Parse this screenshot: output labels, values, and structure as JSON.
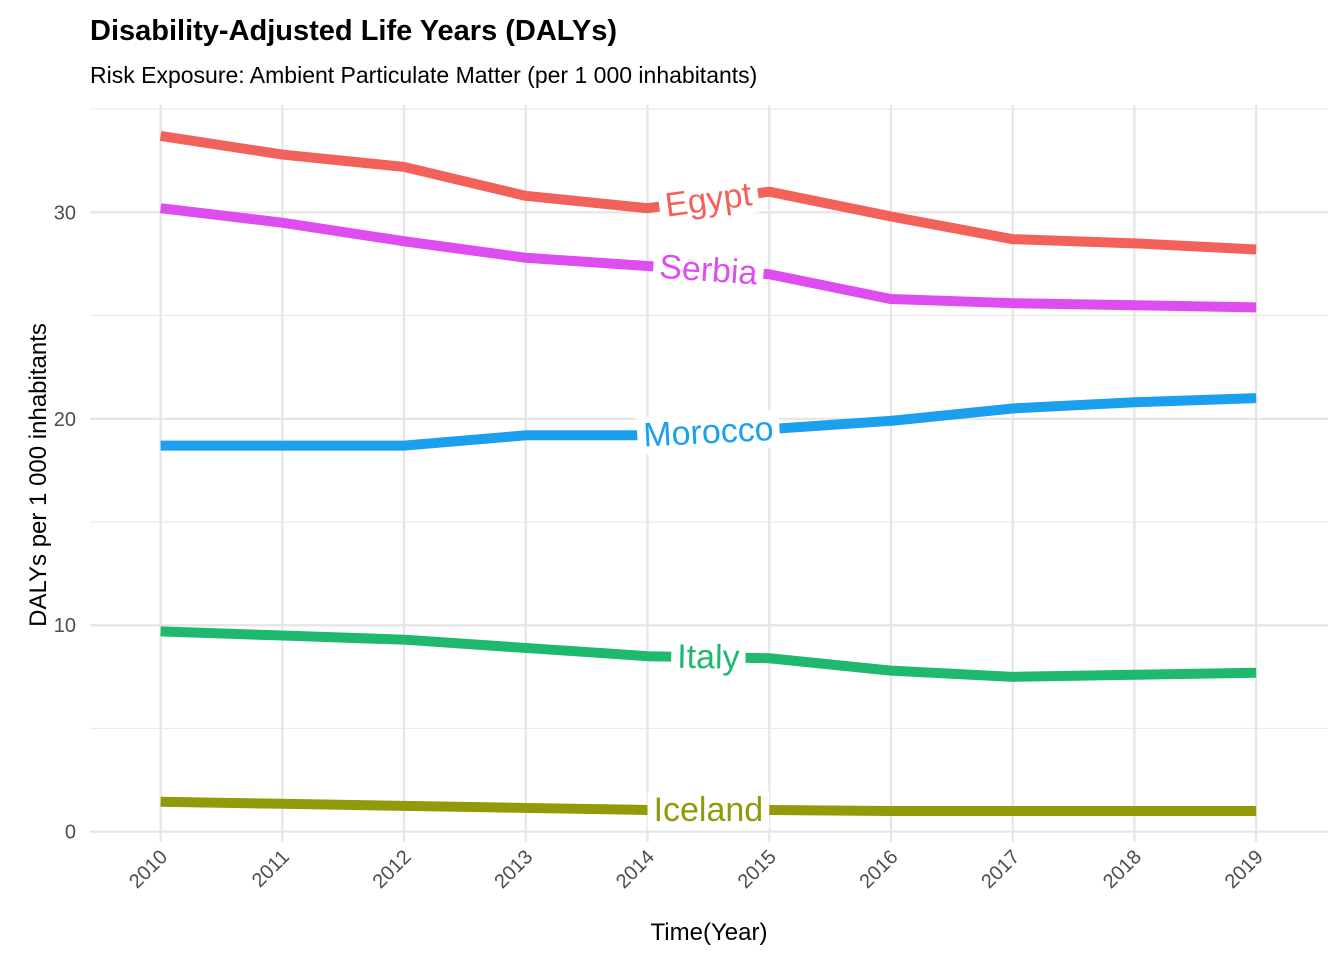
{
  "chart_data": {
    "type": "line",
    "title": "Disability-Adjusted Life Years (DALYs)",
    "subtitle": "Risk Exposure: Ambient Particulate Matter (per 1 000 inhabitants)",
    "x_label": "Time(Year)",
    "y_label": "DALYs per 1 000 inhabitants",
    "x": [
      2010,
      2011,
      2012,
      2013,
      2014,
      2015,
      2016,
      2017,
      2018,
      2019
    ],
    "xlim": [
      2009.42,
      2019.59
    ],
    "xticks": [
      2010,
      2011,
      2012,
      2013,
      2014,
      2015,
      2016,
      2017,
      2018,
      2019
    ],
    "ylim": [
      -0.5,
      35.2
    ],
    "yticks": [
      0,
      10,
      20,
      30
    ],
    "y_minor_ticks": [
      5,
      15,
      25,
      35
    ],
    "grid": true,
    "series": [
      {
        "name": "Egypt",
        "color": "#F3615B",
        "values": [
          33.7,
          32.8,
          32.2,
          30.8,
          30.2,
          31.0,
          29.8,
          28.7,
          28.5,
          28.2
        ]
      },
      {
        "name": "Serbia",
        "color": "#DD4DEF",
        "values": [
          30.2,
          29.5,
          28.6,
          27.8,
          27.4,
          27.0,
          25.8,
          25.6,
          25.5,
          25.4
        ]
      },
      {
        "name": "Morocco",
        "color": "#1BA0F0",
        "values": [
          18.7,
          18.7,
          18.7,
          19.2,
          19.2,
          19.5,
          19.9,
          20.5,
          20.8,
          21.0
        ]
      },
      {
        "name": "Italy",
        "color": "#1EB86F",
        "values": [
          9.7,
          9.5,
          9.3,
          8.9,
          8.5,
          8.4,
          7.8,
          7.5,
          7.6,
          7.7
        ]
      },
      {
        "name": "Iceland",
        "color": "#939A0A",
        "values": [
          1.45,
          1.35,
          1.25,
          1.15,
          1.05,
          1.05,
          1.0,
          1.0,
          1.0,
          1.0
        ]
      }
    ]
  }
}
